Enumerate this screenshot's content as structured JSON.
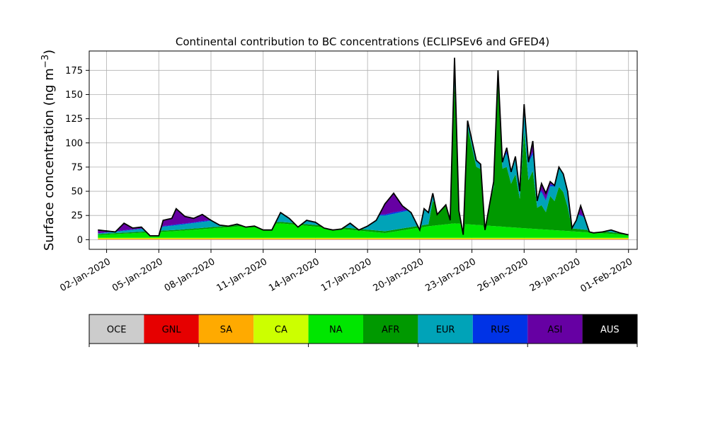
{
  "chart_data": {
    "type": "area",
    "stacked": true,
    "title": "Continental contribution to BC concentrations (ECLIPSEv6 and GFED4)",
    "xlabel": "",
    "ylabel": "Surface concentration (ng m",
    "ylabel_sup": "−3",
    "ylabel_close": ")",
    "x_start": "2020-01-01T12:00",
    "x_end": "2020-02-01T00:00",
    "xlim": [
      "2020-01-01T00:00",
      "2020-02-01T12:00"
    ],
    "ylim": [
      -10,
      195
    ],
    "grid": true,
    "x_ticks": [
      "02-Jan-2020",
      "05-Jan-2020",
      "08-Jan-2020",
      "11-Jan-2020",
      "14-Jan-2020",
      "17-Jan-2020",
      "20-Jan-2020",
      "23-Jan-2020",
      "26-Jan-2020",
      "29-Jan-2020",
      "01-Feb-2020"
    ],
    "y_ticks": [
      0,
      25,
      50,
      75,
      100,
      125,
      150,
      175
    ],
    "series": [
      {
        "name": "OCE",
        "color": "#cccccc"
      },
      {
        "name": "GNL",
        "color": "#e60000"
      },
      {
        "name": "SA",
        "color": "#ffaa00"
      },
      {
        "name": "CA",
        "color": "#ccff00"
      },
      {
        "name": "NA",
        "color": "#00e600"
      },
      {
        "name": "AFR",
        "color": "#009900"
      },
      {
        "name": "EUR",
        "color": "#00a3b8"
      },
      {
        "name": "RUS",
        "color": "#0033e6"
      },
      {
        "name": "ASI",
        "color": "#6600a3"
      },
      {
        "name": "AUS",
        "color": "#000000"
      }
    ],
    "total_points": [
      [
        "2020-01-01T12:00",
        10
      ],
      [
        "2020-01-02T00:00",
        9
      ],
      [
        "2020-01-02T12:00",
        8
      ],
      [
        "2020-01-03T00:00",
        17
      ],
      [
        "2020-01-03T12:00",
        12
      ],
      [
        "2020-01-04T00:00",
        13
      ],
      [
        "2020-01-04T12:00",
        4
      ],
      [
        "2020-01-05T00:00",
        4
      ],
      [
        "2020-01-05T06:00",
        20
      ],
      [
        "2020-01-05T18:00",
        22
      ],
      [
        "2020-01-06T00:00",
        32
      ],
      [
        "2020-01-06T12:00",
        24
      ],
      [
        "2020-01-07T00:00",
        22
      ],
      [
        "2020-01-07T12:00",
        26
      ],
      [
        "2020-01-08T00:00",
        20
      ],
      [
        "2020-01-08T12:00",
        15
      ],
      [
        "2020-01-09T00:00",
        14
      ],
      [
        "2020-01-09T12:00",
        16
      ],
      [
        "2020-01-10T00:00",
        13
      ],
      [
        "2020-01-10T12:00",
        14
      ],
      [
        "2020-01-11T00:00",
        10
      ],
      [
        "2020-01-11T12:00",
        10
      ],
      [
        "2020-01-12T00:00",
        28
      ],
      [
        "2020-01-12T12:00",
        22
      ],
      [
        "2020-01-13T00:00",
        13
      ],
      [
        "2020-01-13T12:00",
        20
      ],
      [
        "2020-01-14T00:00",
        18
      ],
      [
        "2020-01-14T12:00",
        12
      ],
      [
        "2020-01-15T00:00",
        10
      ],
      [
        "2020-01-15T12:00",
        11
      ],
      [
        "2020-01-16T00:00",
        17
      ],
      [
        "2020-01-16T12:00",
        10
      ],
      [
        "2020-01-17T00:00",
        14
      ],
      [
        "2020-01-17T12:00",
        20
      ],
      [
        "2020-01-18T00:00",
        37
      ],
      [
        "2020-01-18T12:00",
        48
      ],
      [
        "2020-01-19T00:00",
        35
      ],
      [
        "2020-01-19T12:00",
        28
      ],
      [
        "2020-01-20T00:00",
        10
      ],
      [
        "2020-01-20T06:00",
        32
      ],
      [
        "2020-01-20T12:00",
        28
      ],
      [
        "2020-01-20T18:00",
        48
      ],
      [
        "2020-01-21T00:00",
        26
      ],
      [
        "2020-01-21T12:00",
        36
      ],
      [
        "2020-01-21T18:00",
        20
      ],
      [
        "2020-01-22T00:00",
        188
      ],
      [
        "2020-01-22T06:00",
        30
      ],
      [
        "2020-01-22T12:00",
        5
      ],
      [
        "2020-01-22T18:00",
        123
      ],
      [
        "2020-01-23T06:00",
        82
      ],
      [
        "2020-01-23T12:00",
        78
      ],
      [
        "2020-01-23T18:00",
        10
      ],
      [
        "2020-01-24T06:00",
        60
      ],
      [
        "2020-01-24T12:00",
        175
      ],
      [
        "2020-01-24T18:00",
        80
      ],
      [
        "2020-01-25T00:00",
        95
      ],
      [
        "2020-01-25T06:00",
        70
      ],
      [
        "2020-01-25T12:00",
        86
      ],
      [
        "2020-01-25T18:00",
        50
      ],
      [
        "2020-01-26T00:00",
        140
      ],
      [
        "2020-01-26T06:00",
        80
      ],
      [
        "2020-01-26T12:00",
        102
      ],
      [
        "2020-01-26T18:00",
        40
      ],
      [
        "2020-01-27T00:00",
        58
      ],
      [
        "2020-01-27T06:00",
        48
      ],
      [
        "2020-01-27T12:00",
        60
      ],
      [
        "2020-01-27T18:00",
        56
      ],
      [
        "2020-01-28T00:00",
        75
      ],
      [
        "2020-01-28T06:00",
        68
      ],
      [
        "2020-01-28T12:00",
        50
      ],
      [
        "2020-01-28T18:00",
        12
      ],
      [
        "2020-01-29T00:00",
        20
      ],
      [
        "2020-01-29T06:00",
        35
      ],
      [
        "2020-01-29T18:00",
        8
      ],
      [
        "2020-01-30T00:00",
        7
      ],
      [
        "2020-01-30T12:00",
        8
      ],
      [
        "2020-01-31T00:00",
        10
      ],
      [
        "2020-01-31T12:00",
        7
      ],
      [
        "2020-02-01T00:00",
        5
      ]
    ],
    "component_points": {
      "NA": [
        [
          "2020-01-01T12:00",
          3
        ],
        [
          "2020-01-06T00:00",
          7
        ],
        [
          "2020-01-12T00:00",
          15
        ],
        [
          "2020-01-18T00:00",
          5
        ],
        [
          "2020-01-20T12:00",
          12
        ],
        [
          "2020-01-22T00:00",
          15
        ],
        [
          "2020-01-26T00:00",
          10
        ],
        [
          "2020-02-01T00:00",
          3
        ]
      ],
      "AFR": [
        [
          "2020-01-01T12:00",
          1
        ],
        [
          "2020-01-20T12:00",
          2
        ],
        [
          "2020-01-22T00:00",
          145
        ],
        [
          "2020-01-22T06:00",
          18
        ],
        [
          "2020-01-22T12:00",
          3
        ],
        [
          "2020-01-22T18:00",
          100
        ],
        [
          "2020-01-23T06:00",
          60
        ],
        [
          "2020-01-23T12:00",
          58
        ],
        [
          "2020-01-23T18:00",
          5
        ],
        [
          "2020-01-24T06:00",
          40
        ],
        [
          "2020-01-24T12:00",
          155
        ],
        [
          "2020-01-24T18:00",
          60
        ],
        [
          "2020-01-25T00:00",
          62
        ],
        [
          "2020-01-25T06:00",
          45
        ],
        [
          "2020-01-25T12:00",
          55
        ],
        [
          "2020-01-25T18:00",
          30
        ],
        [
          "2020-01-26T00:00",
          100
        ],
        [
          "2020-01-26T06:00",
          50
        ],
        [
          "2020-01-26T12:00",
          60
        ],
        [
          "2020-01-26T18:00",
          22
        ],
        [
          "2020-01-27T00:00",
          25
        ],
        [
          "2020-01-27T06:00",
          18
        ],
        [
          "2020-01-27T12:00",
          35
        ],
        [
          "2020-01-27T18:00",
          30
        ],
        [
          "2020-01-28T00:00",
          45
        ],
        [
          "2020-01-28T06:00",
          40
        ],
        [
          "2020-01-28T12:00",
          25
        ],
        [
          "2020-01-28T18:00",
          3
        ],
        [
          "2020-02-01T00:00",
          1
        ]
      ],
      "EUR": [
        [
          "2020-01-01T12:00",
          0.5
        ],
        [
          "2020-01-22T00:00",
          20
        ],
        [
          "2020-01-24T12:00",
          10
        ],
        [
          "2020-01-26T00:00",
          20
        ],
        [
          "2020-01-27T12:00",
          10
        ],
        [
          "2020-01-28T00:00",
          20
        ],
        [
          "2020-02-01T00:00",
          0.5
        ]
      ]
    }
  },
  "legend": {
    "items": [
      "OCE",
      "GNL",
      "SA",
      "CA",
      "NA",
      "AFR",
      "EUR",
      "RUS",
      "ASI",
      "AUS"
    ],
    "label_colors": [
      "#000000",
      "#000000",
      "#000000",
      "#000000",
      "#000000",
      "#000000",
      "#000000",
      "#000000",
      "#000000",
      "#ffffff"
    ]
  }
}
